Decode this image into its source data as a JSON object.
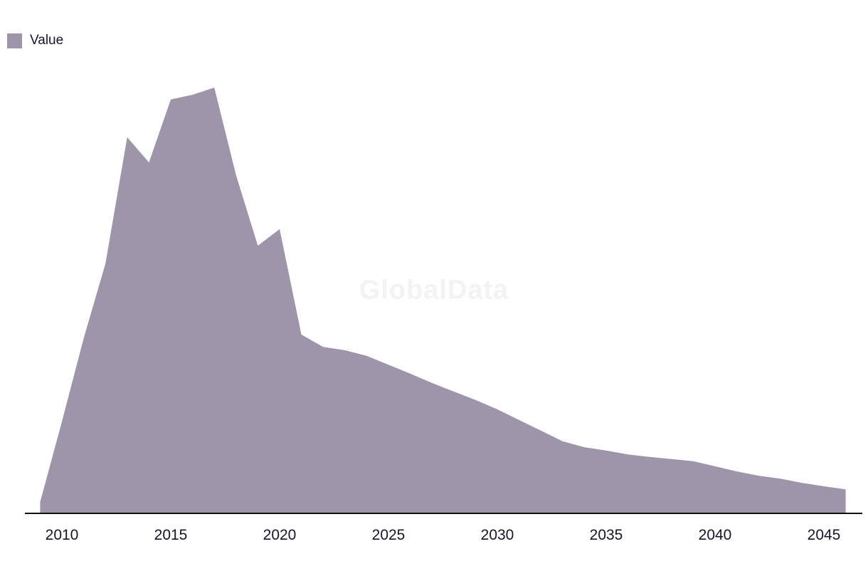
{
  "legend": {
    "label": "Value",
    "swatch_color": "#9e95aa"
  },
  "watermark": "GlobalData",
  "chart_data": {
    "type": "area",
    "title": "",
    "series_name": "Value",
    "x": [
      2009,
      2010,
      2011,
      2012,
      2013,
      2014,
      2015,
      2016,
      2017,
      2018,
      2019,
      2020,
      2021,
      2022,
      2023,
      2024,
      2025,
      2026,
      2027,
      2028,
      2029,
      2030,
      2031,
      2032,
      2033,
      2034,
      2035,
      2036,
      2037,
      2038,
      2039,
      2040,
      2041,
      2042,
      2043,
      2044,
      2045,
      2046
    ],
    "values": [
      2.5,
      21.4,
      41.0,
      58.6,
      88.3,
      82.4,
      97.2,
      98.3,
      100.0,
      79.4,
      62.8,
      66.7,
      41.9,
      39.0,
      38.2,
      36.9,
      34.8,
      32.7,
      30.5,
      28.5,
      26.5,
      24.3,
      21.8,
      19.3,
      16.8,
      15.4,
      14.6,
      13.7,
      13.1,
      12.6,
      12.1,
      10.9,
      9.7,
      8.7,
      8.0,
      7.0,
      6.2,
      5.5
    ],
    "x_ticks": [
      2010,
      2015,
      2020,
      2025,
      2030,
      2035,
      2040,
      2045
    ],
    "ylim": [
      0,
      100
    ],
    "y_axis_visible": false,
    "grid": false,
    "legend_position": "top-left",
    "color": "#9e95aa",
    "axis_color": "#111111"
  }
}
